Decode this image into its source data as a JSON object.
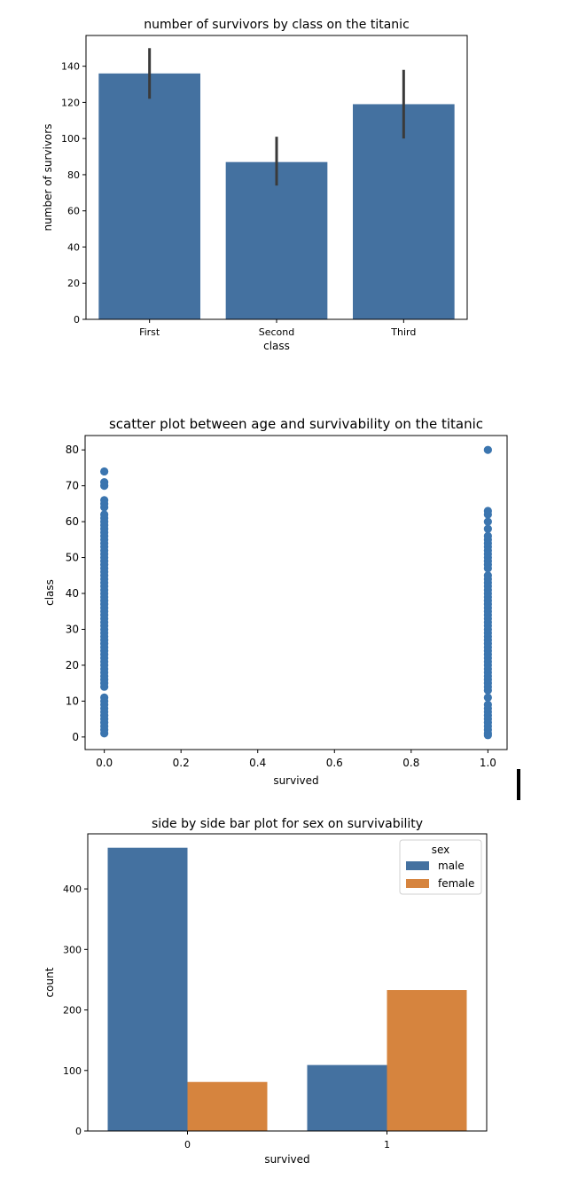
{
  "colors": {
    "blue": "#4471a0",
    "scatter_blue": "#3b75af",
    "orange": "#d6843e",
    "errorbar": "#3a3a3a"
  },
  "chart_data": [
    {
      "type": "bar",
      "title": "number of survivors by class on the titanic",
      "xlabel": "class",
      "ylabel": "number of survivors",
      "categories": [
        "First",
        "Second",
        "Third"
      ],
      "values": [
        136,
        87,
        119
      ],
      "error_low": [
        122,
        74,
        100
      ],
      "error_high": [
        150,
        101,
        138
      ],
      "ylim": [
        0,
        157
      ],
      "yticks": [
        "0",
        "20",
        "40",
        "60",
        "80",
        "100",
        "120",
        "140"
      ],
      "grid": false
    },
    {
      "type": "scatter",
      "title": "scatter plot between age and survivability on the titanic",
      "xlabel": "survived",
      "ylabel": "class",
      "xlim": [
        -0.05,
        1.05
      ],
      "ylim": [
        -3.5,
        84
      ],
      "xticks": [
        "0.0",
        "0.2",
        "0.4",
        "0.6",
        "0.8",
        "1.0"
      ],
      "yticks": [
        "0",
        "10",
        "20",
        "30",
        "40",
        "50",
        "60",
        "70",
        "80"
      ],
      "series": [
        {
          "x": 0,
          "y": [
            1,
            2,
            3,
            4,
            5,
            6,
            7,
            8,
            9,
            10,
            11,
            14,
            15,
            16,
            17,
            18,
            19,
            20,
            21,
            22,
            23,
            24,
            25,
            26,
            27,
            28,
            29,
            30,
            31,
            32,
            33,
            34,
            35,
            36,
            37,
            38,
            39,
            40,
            41,
            42,
            43,
            44,
            45,
            46,
            47,
            48,
            49,
            50,
            51,
            52,
            53,
            54,
            55,
            56,
            57,
            58,
            59,
            60,
            61,
            62,
            64,
            65,
            66,
            70,
            71,
            74
          ]
        },
        {
          "x": 1,
          "y": [
            0.5,
            1,
            2,
            3,
            4,
            5,
            6,
            7,
            8,
            9,
            11,
            13,
            14,
            15,
            16,
            17,
            18,
            19,
            20,
            21,
            22,
            23,
            24,
            25,
            26,
            27,
            28,
            29,
            30,
            31,
            32,
            33,
            34,
            35,
            36,
            37,
            38,
            39,
            40,
            41,
            42,
            43,
            44,
            45,
            47,
            48,
            49,
            50,
            51,
            52,
            53,
            54,
            55,
            56,
            58,
            60,
            62,
            63,
            80
          ]
        }
      ],
      "grid": false
    },
    {
      "type": "bar",
      "title": "side by side bar plot for sex on survivability",
      "xlabel": "survived",
      "ylabel": "count",
      "categories": [
        "0",
        "1"
      ],
      "series": [
        {
          "name": "male",
          "values": [
            468,
            109
          ]
        },
        {
          "name": "female",
          "values": [
            81,
            233
          ]
        }
      ],
      "ylim": [
        0,
        491
      ],
      "yticks": [
        "0",
        "100",
        "200",
        "300",
        "400"
      ],
      "legend": {
        "title": "sex",
        "position": "top-right"
      },
      "grid": false
    }
  ]
}
